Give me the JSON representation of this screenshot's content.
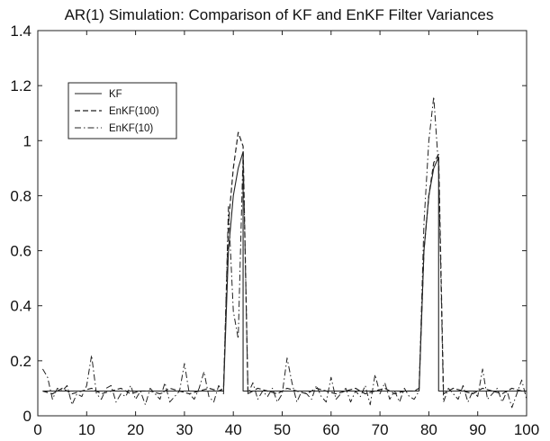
{
  "chart_data": {
    "type": "line",
    "title": "AR(1) Simulation: Comparison of KF and EnKF Filter Variances",
    "xlabel": "",
    "ylabel": "",
    "xlim": [
      0,
      100
    ],
    "ylim": [
      0,
      1.4
    ],
    "xticks": [
      0,
      10,
      20,
      30,
      40,
      50,
      60,
      70,
      80,
      90,
      100
    ],
    "yticks": [
      0,
      0.2,
      0.4,
      0.6,
      0.8,
      1,
      1.2,
      1.4
    ],
    "xtick_labels": [
      "0",
      "10",
      "20",
      "30",
      "40",
      "50",
      "60",
      "70",
      "80",
      "90",
      "100"
    ],
    "ytick_labels": [
      "0",
      "0.2",
      "0.4",
      "0.6",
      "0.8",
      "1",
      "1.2",
      "1.4"
    ],
    "grid": false,
    "legend_position": "top-left",
    "series": [
      {
        "name": "KF",
        "style": "solid",
        "color": "#222222",
        "x": [
          1,
          38,
          38,
          39,
          40,
          41,
          42,
          42,
          78,
          78,
          79,
          80,
          81,
          82,
          82,
          100
        ],
        "y": [
          0.09,
          0.09,
          0.09,
          0.6,
          0.8,
          0.9,
          0.96,
          0.09,
          0.09,
          0.09,
          0.6,
          0.8,
          0.9,
          0.94,
          0.09,
          0.09
        ]
      },
      {
        "name": "EnKF(100)",
        "style": "dashed",
        "color": "#222222",
        "x": [
          1,
          3,
          5,
          7,
          9,
          11,
          13,
          15,
          17,
          19,
          21,
          23,
          25,
          27,
          29,
          31,
          33,
          35,
          37,
          38,
          39,
          40,
          41,
          42,
          43,
          45,
          47,
          49,
          51,
          53,
          55,
          57,
          59,
          61,
          63,
          65,
          67,
          69,
          71,
          73,
          75,
          77,
          78,
          79,
          80,
          81,
          82,
          83,
          85,
          87,
          89,
          91,
          93,
          95,
          97,
          99,
          100
        ],
        "y": [
          0.09,
          0.08,
          0.1,
          0.08,
          0.09,
          0.1,
          0.08,
          0.09,
          0.1,
          0.08,
          0.09,
          0.09,
          0.08,
          0.1,
          0.09,
          0.08,
          0.09,
          0.1,
          0.09,
          0.1,
          0.7,
          0.9,
          1.03,
          0.98,
          0.08,
          0.1,
          0.09,
          0.08,
          0.1,
          0.09,
          0.08,
          0.1,
          0.09,
          0.08,
          0.09,
          0.1,
          0.08,
          0.09,
          0.1,
          0.08,
          0.09,
          0.09,
          0.1,
          0.6,
          0.8,
          0.92,
          0.95,
          0.08,
          0.1,
          0.09,
          0.08,
          0.1,
          0.09,
          0.08,
          0.1,
          0.09,
          0.09
        ]
      },
      {
        "name": "EnKF(10)",
        "style": "dashdot",
        "color": "#222222",
        "x": [
          1,
          2,
          3,
          4,
          5,
          6,
          7,
          8,
          9,
          10,
          11,
          12,
          13,
          14,
          15,
          16,
          17,
          18,
          19,
          20,
          21,
          22,
          23,
          24,
          25,
          26,
          27,
          28,
          29,
          30,
          31,
          32,
          33,
          34,
          35,
          36,
          37,
          38,
          39,
          40,
          41,
          42,
          43,
          44,
          45,
          46,
          47,
          48,
          49,
          50,
          51,
          52,
          53,
          54,
          55,
          56,
          57,
          58,
          59,
          60,
          61,
          62,
          63,
          64,
          65,
          66,
          67,
          68,
          69,
          70,
          71,
          72,
          73,
          74,
          75,
          76,
          77,
          78,
          79,
          80,
          81,
          82,
          83,
          84,
          85,
          86,
          87,
          88,
          89,
          90,
          91,
          92,
          93,
          94,
          95,
          96,
          97,
          98,
          99,
          100
        ],
        "y": [
          0.17,
          0.14,
          0.06,
          0.1,
          0.09,
          0.11,
          0.04,
          0.08,
          0.07,
          0.11,
          0.22,
          0.08,
          0.06,
          0.1,
          0.11,
          0.05,
          0.08,
          0.07,
          0.11,
          0.06,
          0.09,
          0.04,
          0.1,
          0.08,
          0.06,
          0.12,
          0.05,
          0.07,
          0.09,
          0.19,
          0.08,
          0.06,
          0.1,
          0.16,
          0.07,
          0.05,
          0.11,
          0.08,
          0.76,
          0.38,
          0.28,
          0.96,
          0.08,
          0.12,
          0.06,
          0.09,
          0.07,
          0.1,
          0.05,
          0.08,
          0.21,
          0.12,
          0.05,
          0.09,
          0.08,
          0.06,
          0.11,
          0.07,
          0.05,
          0.14,
          0.06,
          0.08,
          0.1,
          0.05,
          0.09,
          0.07,
          0.11,
          0.04,
          0.15,
          0.08,
          0.12,
          0.06,
          0.09,
          0.05,
          0.1,
          0.07,
          0.06,
          0.09,
          0.7,
          1.0,
          1.16,
          0.9,
          0.05,
          0.1,
          0.08,
          0.06,
          0.11,
          0.05,
          0.09,
          0.07,
          0.17,
          0.06,
          0.08,
          0.1,
          0.05,
          0.09,
          0.03,
          0.08,
          0.13,
          0.06
        ]
      }
    ]
  }
}
